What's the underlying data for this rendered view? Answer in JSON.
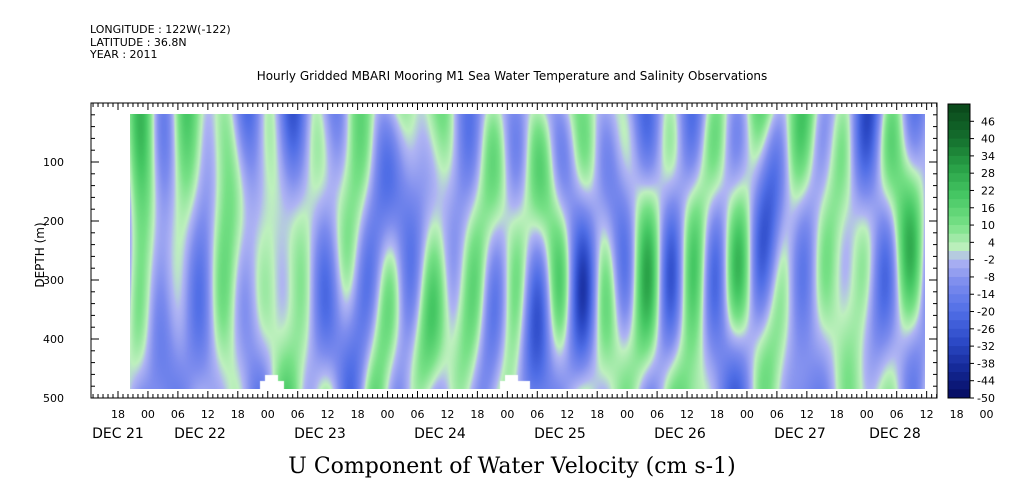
{
  "header": {
    "longitude": "LONGITUDE : 122W(-122)",
    "latitude": "LATITUDE : 36.8N",
    "year": "YEAR : 2011"
  },
  "chart_data": {
    "type": "heatmap",
    "title": "Hourly Gridded MBARI Mooring M1 Sea Water Temperature and Salinity Observations",
    "xlabel": "U Component of Water Velocity (cm s-1)",
    "ylabel": "DEPTH (m)",
    "ylim": [
      500,
      0
    ],
    "y_ticks": [
      100,
      200,
      300,
      400,
      500
    ],
    "x_hour_ticks": [
      "18",
      "00",
      "06",
      "12",
      "18",
      "00",
      "06",
      "12",
      "18",
      "00",
      "06",
      "12",
      "18",
      "00",
      "06",
      "12",
      "18",
      "00",
      "06",
      "12",
      "18",
      "00",
      "06",
      "12",
      "18",
      "00",
      "06",
      "12",
      "18",
      "00",
      "06",
      "12"
    ],
    "x_day_labels": [
      "DEC 21",
      "DEC 22",
      "DEC 23",
      "DEC 24",
      "DEC 25",
      "DEC 26",
      "DEC 27",
      "DEC 28"
    ],
    "colorbar_ticks": [
      46,
      40,
      34,
      28,
      22,
      16,
      10,
      4,
      -2,
      -8,
      -14,
      -20,
      -26,
      -32,
      -38,
      -44,
      -50
    ],
    "colorbar_range": [
      -50,
      52
    ],
    "colors": {
      "positive_mid": "#8fe59a",
      "negative_mid": "#98a2ee"
    }
  }
}
